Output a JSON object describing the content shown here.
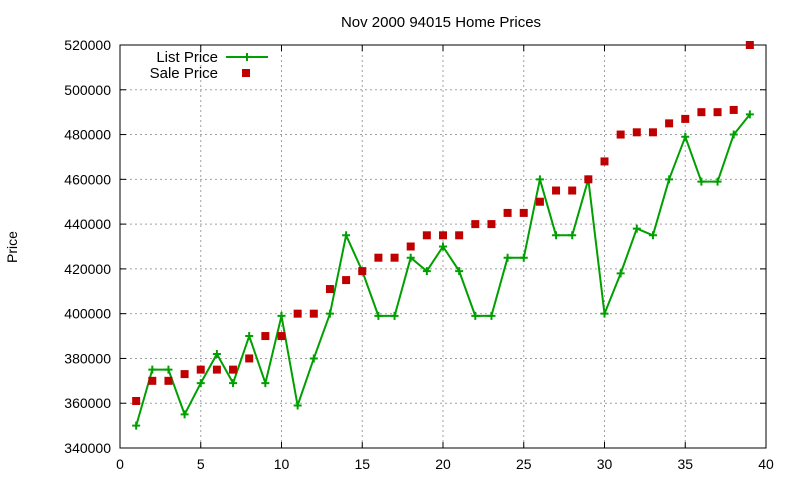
{
  "chart_data": {
    "type": "line",
    "title": "Nov 2000 94015 Home Prices",
    "xlabel": "",
    "ylabel": "Price",
    "xlim": [
      0,
      40
    ],
    "ylim": [
      340000,
      520000
    ],
    "xticks": [
      0,
      5,
      10,
      15,
      20,
      25,
      30,
      35,
      40
    ],
    "yticks": [
      340000,
      360000,
      380000,
      400000,
      420000,
      440000,
      460000,
      480000,
      500000,
      520000
    ],
    "grid": true,
    "legend_position": "top-left",
    "series": [
      {
        "name": "List Price",
        "style": "line-plus",
        "color": "#00a000",
        "x": [
          1,
          2,
          3,
          4,
          5,
          6,
          7,
          8,
          9,
          10,
          11,
          12,
          13,
          14,
          15,
          16,
          17,
          18,
          19,
          20,
          21,
          22,
          23,
          24,
          25,
          26,
          27,
          28,
          29,
          30,
          31,
          32,
          33,
          34,
          35,
          36,
          37,
          38,
          39
        ],
        "y": [
          350000,
          375000,
          375000,
          355000,
          369000,
          382000,
          369000,
          390000,
          369000,
          399000,
          359000,
          380000,
          400000,
          435000,
          419000,
          399000,
          399000,
          425000,
          419000,
          430000,
          419000,
          399000,
          399000,
          425000,
          425000,
          460000,
          435000,
          435000,
          460000,
          400000,
          418000,
          438000,
          435000,
          460000,
          479000,
          459000,
          459000,
          480000,
          489000
        ]
      },
      {
        "name": "Sale Price",
        "style": "square",
        "color": "#c00000",
        "x": [
          1,
          2,
          3,
          4,
          5,
          6,
          7,
          8,
          9,
          10,
          11,
          12,
          13,
          14,
          15,
          16,
          17,
          18,
          19,
          20,
          21,
          22,
          23,
          24,
          25,
          26,
          27,
          28,
          29,
          30,
          31,
          32,
          33,
          34,
          35,
          36,
          37,
          38,
          39
        ],
        "y": [
          361000,
          370000,
          370000,
          373000,
          375000,
          375000,
          375000,
          380000,
          390000,
          390000,
          400000,
          400000,
          411000,
          415000,
          419000,
          425000,
          425000,
          430000,
          435000,
          435000,
          435000,
          440000,
          440000,
          445000,
          445000,
          450000,
          455000,
          455000,
          460000,
          468000,
          480000,
          481000,
          481000,
          485000,
          487000,
          490000,
          490000,
          491000,
          520000
        ]
      }
    ]
  }
}
